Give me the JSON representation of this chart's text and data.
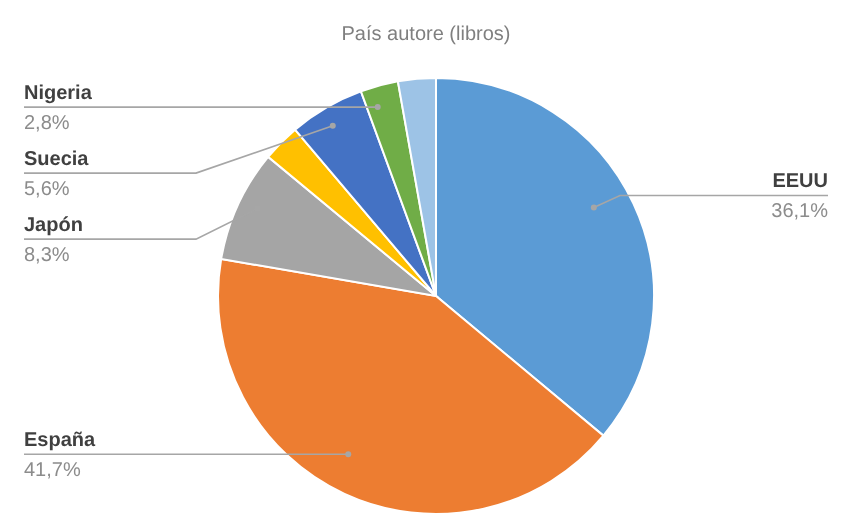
{
  "chart_data": {
    "type": "pie",
    "title": "País autore (libros)",
    "categories": [
      "EEUU",
      "España",
      "Japón",
      null,
      "Suecia",
      "Nigeria",
      null
    ],
    "values": [
      36.1,
      41.7,
      8.3,
      2.8,
      5.6,
      2.8,
      2.8
    ],
    "value_labels": [
      "36,1%",
      "41,7%",
      "8,3%",
      null,
      "5,6%",
      "2,8%",
      null
    ],
    "colors": [
      "#5b9bd5",
      "#ed7d31",
      "#a5a5a5",
      "#ffc000",
      "#4472c4",
      "#70ad47",
      "#9dc3e6"
    ],
    "legend": false
  }
}
